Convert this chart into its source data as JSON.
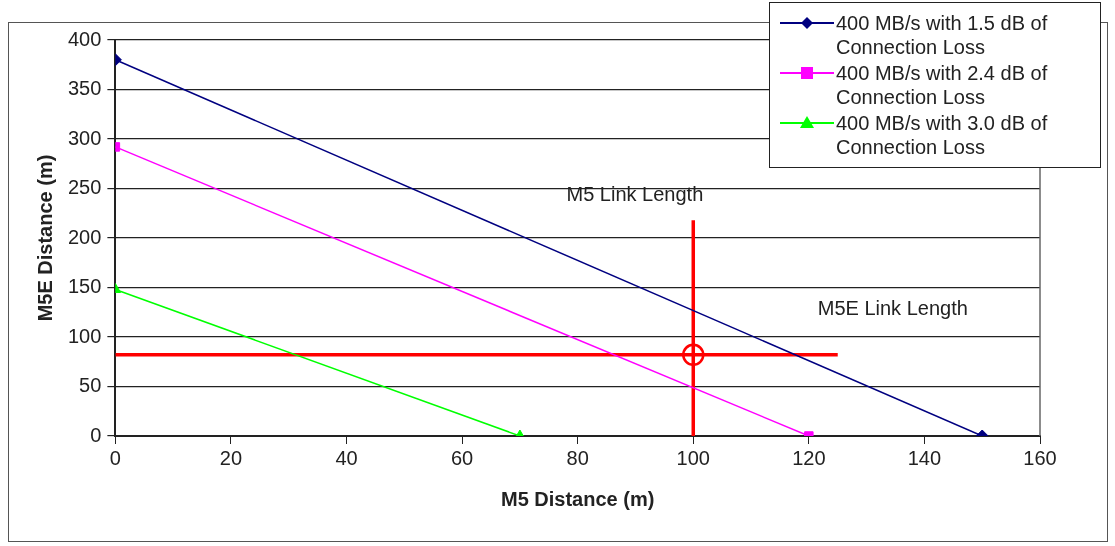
{
  "chart_data": {
    "type": "line",
    "xlabel": "M5 Distance (m)",
    "ylabel": "M5E Distance (m)",
    "xlim": [
      0,
      160
    ],
    "xticks": [
      0,
      20,
      40,
      60,
      80,
      100,
      120,
      140,
      160
    ],
    "ylim": [
      0,
      400
    ],
    "yticks": [
      0,
      50,
      100,
      150,
      200,
      250,
      300,
      350,
      400
    ],
    "grid": "y",
    "legend": "top right",
    "series": [
      {
        "name": "400 MB/s with 1.5 dB of Connection Loss",
        "color": "#000080",
        "x": [
          0,
          150
        ],
        "values": [
          380,
          0
        ],
        "marker": "diamond"
      },
      {
        "name": "400 MB/s with 2.4 dB of Connection Loss",
        "color": "#ff00ff",
        "x": [
          0,
          120
        ],
        "values": [
          292,
          0
        ],
        "marker": "square"
      },
      {
        "name": "400 MB/s with 3.0 dB of Connection Loss",
        "color": "#00ff00",
        "x": [
          0,
          70
        ],
        "values": [
          148,
          0
        ],
        "marker": "triangle"
      },
      {
        "color": "#ff0000",
        "x": [
          100,
          100
        ],
        "values": [
          0,
          218
        ],
        "marker": "none"
      },
      {
        "color": "#ff0000",
        "x": [
          0,
          125
        ],
        "values": [
          82,
          82
        ],
        "marker": "none"
      },
      {
        "type": "scatter",
        "color": "#ff0000",
        "x": [
          100
        ],
        "values": [
          82
        ],
        "marker": "circle"
      }
    ],
    "annotations": [
      "M5 Link Length",
      "M5E Link Length"
    ]
  }
}
